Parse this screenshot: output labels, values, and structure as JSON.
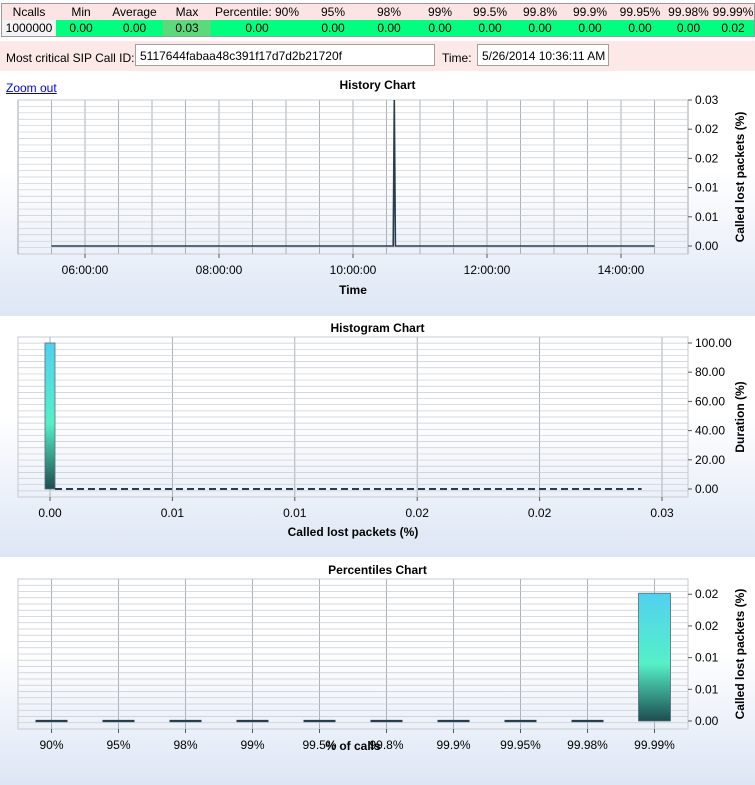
{
  "stats": {
    "headers": [
      "Ncalls",
      "Min",
      "Average",
      "Max",
      "Percentile: 90%",
      "95%",
      "98%",
      "99%",
      "99.5%",
      "99.8%",
      "99.9%",
      "99.95%",
      "99.98%",
      "99.99%"
    ],
    "values": [
      "1000000",
      "0.00",
      "0.00",
      "0.03",
      "0.00",
      "0.00",
      "0.00",
      "0.00",
      "0.00",
      "0.00",
      "0.00",
      "0.00",
      "0.00",
      "0.02"
    ]
  },
  "critical": {
    "label": "Most critical SIP Call ID:",
    "call_id": "5117644fabaa48c391f17d7d2b21720f",
    "time_label": "Time:",
    "time_value": "5/26/2014 10:36:11 AM"
  },
  "zoom_out": "Zoom out",
  "colors": {
    "accent_line": "#2a3d4d",
    "bar_top": "#52d0f0",
    "bar_mid": "#55f0c8",
    "bar_bottom": "#1d4d50"
  },
  "chart_data": [
    {
      "type": "line",
      "title": "History Chart",
      "xlabel": "Time",
      "ylabel": "Called lost packets (%)",
      "x_ticks": [
        "06:00:00",
        "08:00:00",
        "10:00:00",
        "12:00:00",
        "14:00:00"
      ],
      "y_ticks": [
        "0.00",
        "0.01",
        "0.01",
        "0.02",
        "0.02",
        "0.03"
      ],
      "xlim": [
        "05:00",
        "15:00"
      ],
      "ylim": [
        0,
        0.03
      ],
      "series": [
        {
          "x": [
            "05:30",
            "10:36",
            "10:37",
            "10:38",
            "14:30"
          ],
          "values": [
            0,
            0,
            0.03,
            0,
            0
          ]
        }
      ],
      "grid": true
    },
    {
      "type": "bar",
      "title": "Histogram Chart",
      "xlabel": "Called lost packets (%)",
      "ylabel": "Duration (%)",
      "x_ticks": [
        "0.00",
        "0.01",
        "0.01",
        "0.02",
        "0.02",
        "0.03"
      ],
      "y_ticks": [
        "0.00",
        "20.00",
        "40.00",
        "60.00",
        "80.00",
        "100.00"
      ],
      "xlim": [
        0,
        0.03
      ],
      "ylim": [
        0,
        100
      ],
      "bars": [
        {
          "x": 0.0,
          "value": 100
        }
      ],
      "baseline_dashed_to": 0.029,
      "grid": true
    },
    {
      "type": "bar",
      "title": "Percentiles Chart",
      "xlabel": "% of calls",
      "ylabel": "Called lost packets (%)",
      "categories": [
        "90%",
        "95%",
        "98%",
        "99%",
        "99.5%",
        "99.8%",
        "99.9%",
        "99.95%",
        "99.98%",
        "99.99%"
      ],
      "values": [
        0,
        0,
        0,
        0,
        0,
        0,
        0,
        0,
        0,
        0.025
      ],
      "y_ticks": [
        "0.00",
        "0.01",
        "0.01",
        "0.02",
        "0.02"
      ],
      "ylim": [
        0,
        0.027
      ],
      "grid": true
    }
  ]
}
